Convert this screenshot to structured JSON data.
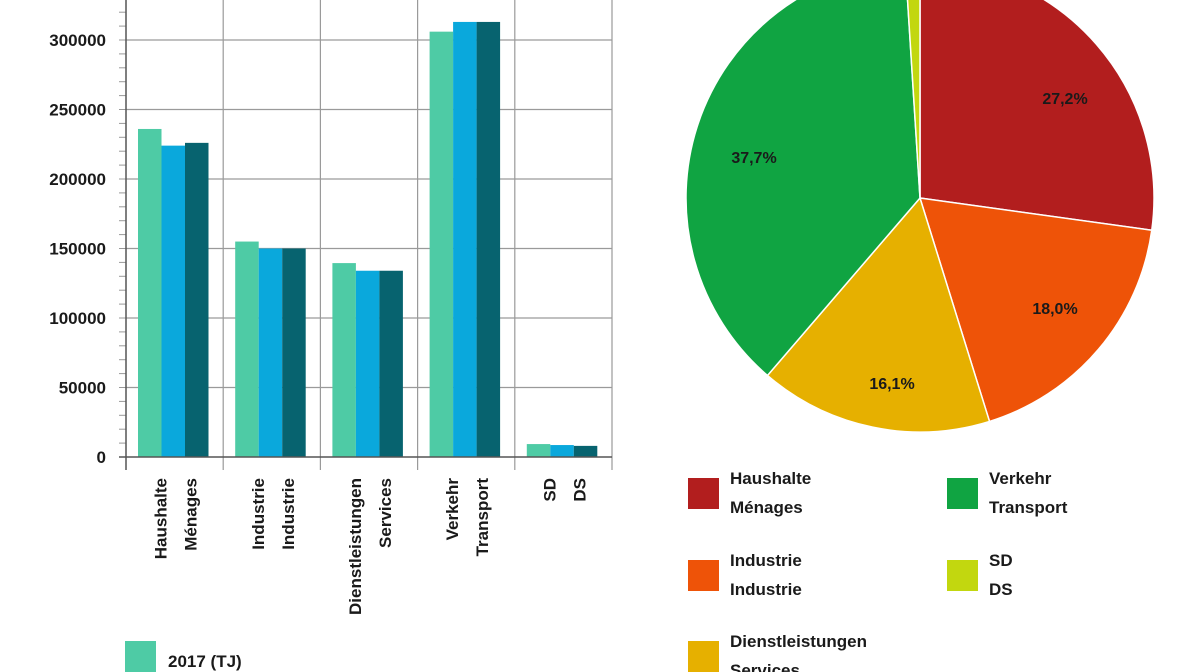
{
  "chart_data": [
    {
      "type": "bar",
      "title": "",
      "xlabel": "",
      "ylabel": "",
      "ylim": [
        0,
        330000
      ],
      "yticks": [
        0,
        50000,
        100000,
        150000,
        200000,
        250000,
        300000
      ],
      "ytick_labels": [
        "0",
        "50000",
        "100000",
        "150000",
        "200000",
        "250000",
        "300000"
      ],
      "grid": true,
      "categories": [
        [
          "Haushalte",
          "Ménages"
        ],
        [
          "Industrie",
          "Industrie"
        ],
        [
          "Dienstleistungen",
          "Services"
        ],
        [
          "Verkehr",
          "Transport"
        ],
        [
          "SD",
          "DS"
        ]
      ],
      "series": [
        {
          "name": "2017 (TJ)",
          "color": "#4ecba5",
          "values": [
            236000,
            155000,
            139500,
            306000,
            9300
          ]
        },
        {
          "name": "",
          "color": "#0aa8dc",
          "values": [
            224000,
            150000,
            134000,
            313000,
            8600
          ]
        },
        {
          "name": "",
          "color": "#07636f",
          "values": [
            226000,
            150000,
            134000,
            313000,
            8000
          ]
        }
      ],
      "legend": {
        "placement": "bottom-left",
        "visible_entries": [
          "2017 (TJ)"
        ]
      }
    },
    {
      "type": "pie",
      "title": "",
      "slices": [
        {
          "label": [
            "Haushalte",
            "Ménages"
          ],
          "value": 27.2,
          "text": "27,2%",
          "color": "#b21e1e"
        },
        {
          "label": [
            "Industrie",
            "Industrie"
          ],
          "value": 18.0,
          "text": "18,0%",
          "color": "#ee5308"
        },
        {
          "label": [
            "Dienstleistungen",
            "Services"
          ],
          "value": 16.1,
          "text": "16,1%",
          "color": "#e6b000"
        },
        {
          "label": [
            "Verkehr",
            "Transport"
          ],
          "value": 37.7,
          "text": "37,7%",
          "color": "#10a442"
        },
        {
          "label": [
            "SD",
            "DS"
          ],
          "value": 1.0,
          "text": "",
          "color": "#c2d70f"
        }
      ],
      "legend": {
        "placement": "bottom"
      }
    }
  ]
}
